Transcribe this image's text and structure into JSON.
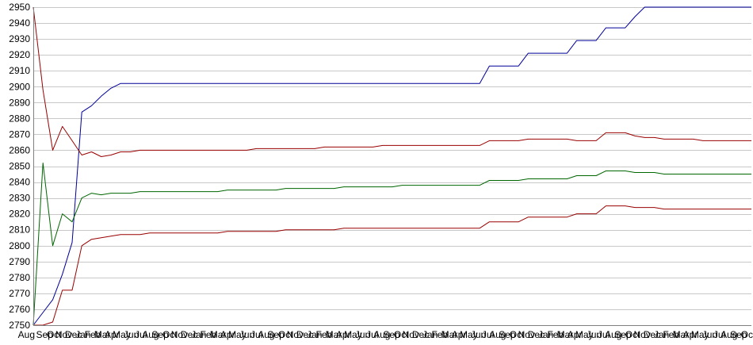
{
  "chart_data": {
    "type": "line",
    "title": "",
    "xlabel": "",
    "ylabel": "",
    "ylim": [
      2750,
      2950
    ],
    "y_ticks": [
      2750,
      2760,
      2770,
      2780,
      2790,
      2800,
      2810,
      2820,
      2830,
      2840,
      2850,
      2860,
      2870,
      2880,
      2890,
      2900,
      2910,
      2920,
      2930,
      2940,
      2950
    ],
    "grid": true,
    "legend": "none",
    "x_tick_labels": [
      "Aug",
      "Sep",
      "Oct",
      "Nov",
      "Dec",
      "Jan",
      "Feb",
      "Mar",
      "Apr",
      "May",
      "Jun",
      "Jul",
      "Aug",
      "Sep",
      "Oct",
      "Nov",
      "Dec",
      "Jan",
      "Feb",
      "Mar",
      "Apr",
      "May",
      "Jun",
      "Jul",
      "Aug",
      "Sep",
      "Oct",
      "Nov",
      "Dec",
      "Jan",
      "Feb",
      "Mar",
      "Apr",
      "May",
      "Jun",
      "Jul",
      "Aug",
      "Sep",
      "Oct",
      "Nov",
      "Dec",
      "Jan",
      "Feb",
      "Mar",
      "Apr",
      "May",
      "Jun",
      "Jul",
      "Aug",
      "Sep",
      "Oct",
      "Nov",
      "Dec",
      "Jan",
      "Feb",
      "Mar",
      "Apr",
      "May",
      "Jun",
      "Jul",
      "Aug",
      "Sep",
      "Oct",
      "Nov",
      "Dec",
      "Jan",
      "Feb",
      "Mar",
      "Apr",
      "May",
      "Jun",
      "Jul",
      "Aug",
      "Sep",
      "Oct"
    ],
    "x": [
      0,
      1,
      2,
      3,
      4,
      5,
      6,
      7,
      8,
      9,
      10,
      11,
      12,
      13,
      14,
      15,
      16,
      17,
      18,
      19,
      20,
      21,
      22,
      23,
      24,
      25,
      26,
      27,
      28,
      29,
      30,
      31,
      32,
      33,
      34,
      35,
      36,
      37,
      38,
      39,
      40,
      41,
      42,
      43,
      44,
      45,
      46,
      47,
      48,
      49,
      50,
      51,
      52,
      53,
      54,
      55,
      56,
      57,
      58,
      59,
      60,
      61,
      62,
      63,
      64,
      65,
      66,
      67,
      68,
      69,
      70,
      71,
      72,
      73,
      74
    ],
    "series": [
      {
        "color": "#000099",
        "values": [
          2750,
          2758,
          2766,
          2782,
          2802,
          2884,
          2888,
          2894,
          2899,
          2902,
          2902,
          2902,
          2902,
          2902,
          2902,
          2902,
          2902,
          2902,
          2902,
          2902,
          2902,
          2902,
          2902,
          2902,
          2902,
          2902,
          2902,
          2902,
          2902,
          2902,
          2902,
          2902,
          2902,
          2902,
          2902,
          2902,
          2902,
          2902,
          2902,
          2902,
          2902,
          2902,
          2902,
          2902,
          2902,
          2902,
          2902,
          2913,
          2913,
          2913,
          2913,
          2921,
          2921,
          2921,
          2921,
          2921,
          2929,
          2929,
          2929,
          2937,
          2937,
          2937,
          2944,
          2950,
          2950,
          2950,
          2950,
          2950,
          2950,
          2950,
          2950,
          2950,
          2950,
          2950,
          2950
        ]
      },
      {
        "color": "#990000",
        "values": [
          2950,
          2898,
          2860,
          2875,
          2866,
          2857,
          2859,
          2856,
          2857,
          2859,
          2859,
          2860,
          2860,
          2860,
          2860,
          2860,
          2860,
          2860,
          2860,
          2860,
          2860,
          2860,
          2860,
          2861,
          2861,
          2861,
          2861,
          2861,
          2861,
          2861,
          2862,
          2862,
          2862,
          2862,
          2862,
          2862,
          2863,
          2863,
          2863,
          2863,
          2863,
          2863,
          2863,
          2863,
          2863,
          2863,
          2863,
          2866,
          2866,
          2866,
          2866,
          2867,
          2867,
          2867,
          2867,
          2867,
          2866,
          2866,
          2866,
          2871,
          2871,
          2871,
          2869,
          2868,
          2868,
          2867,
          2867,
          2867,
          2867,
          2866,
          2866,
          2866,
          2866,
          2866,
          2866
        ]
      },
      {
        "color": "#006600",
        "values": [
          2750,
          2852,
          2800,
          2820,
          2815,
          2830,
          2833,
          2832,
          2833,
          2833,
          2833,
          2834,
          2834,
          2834,
          2834,
          2834,
          2834,
          2834,
          2834,
          2834,
          2835,
          2835,
          2835,
          2835,
          2835,
          2835,
          2836,
          2836,
          2836,
          2836,
          2836,
          2836,
          2837,
          2837,
          2837,
          2837,
          2837,
          2837,
          2838,
          2838,
          2838,
          2838,
          2838,
          2838,
          2838,
          2838,
          2838,
          2841,
          2841,
          2841,
          2841,
          2842,
          2842,
          2842,
          2842,
          2842,
          2844,
          2844,
          2844,
          2847,
          2847,
          2847,
          2846,
          2846,
          2846,
          2845,
          2845,
          2845,
          2845,
          2845,
          2845,
          2845,
          2845,
          2845,
          2845
        ]
      },
      {
        "color": "#990000",
        "values": [
          2750,
          2750,
          2752,
          2772,
          2772,
          2800,
          2804,
          2805,
          2806,
          2807,
          2807,
          2807,
          2808,
          2808,
          2808,
          2808,
          2808,
          2808,
          2808,
          2808,
          2809,
          2809,
          2809,
          2809,
          2809,
          2809,
          2810,
          2810,
          2810,
          2810,
          2810,
          2810,
          2811,
          2811,
          2811,
          2811,
          2811,
          2811,
          2811,
          2811,
          2811,
          2811,
          2811,
          2811,
          2811,
          2811,
          2811,
          2815,
          2815,
          2815,
          2815,
          2818,
          2818,
          2818,
          2818,
          2818,
          2820,
          2820,
          2820,
          2825,
          2825,
          2825,
          2824,
          2824,
          2824,
          2823,
          2823,
          2823,
          2823,
          2823,
          2823,
          2823,
          2823,
          2823,
          2823
        ]
      }
    ]
  }
}
